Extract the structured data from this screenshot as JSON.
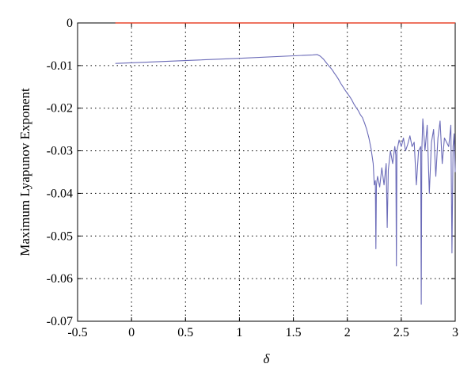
{
  "chart_data": {
    "type": "line",
    "title": "",
    "xlabel": "δ",
    "ylabel": "Maximum Lyapunov Exponent",
    "xlim": [
      -0.5,
      3
    ],
    "ylim": [
      -0.07,
      0
    ],
    "grid": true,
    "x_ticks": [
      -0.5,
      0,
      0.5,
      1,
      1.5,
      2,
      2.5,
      3
    ],
    "x_tick_labels": [
      "-0.5",
      "0",
      "0.5",
      "1",
      "1.5",
      "2",
      "2.5",
      "3"
    ],
    "y_ticks": [
      0,
      -0.01,
      -0.02,
      -0.03,
      -0.04,
      -0.05,
      -0.06,
      -0.07
    ],
    "y_tick_labels": [
      "0",
      "-0.01",
      "-0.02",
      "-0.03",
      "-0.04",
      "-0.05",
      "-0.06",
      "-0.07"
    ],
    "series": [
      {
        "color": "#e8452c",
        "x": [
          -0.15,
          3.0
        ],
        "y": [
          0,
          0
        ]
      },
      {
        "color": "#6b6bb8",
        "x": [
          -0.15,
          1.0,
          1.68,
          1.72,
          1.75,
          1.78,
          1.8,
          1.82,
          1.84,
          1.86,
          1.88,
          1.9,
          1.92,
          1.94,
          1.96,
          1.98,
          2.0,
          2.02,
          2.04,
          2.06,
          2.08,
          2.1,
          2.12,
          2.14,
          2.16,
          2.18,
          2.2,
          2.22,
          2.24,
          2.25,
          2.26,
          2.265,
          2.27,
          2.28,
          2.3,
          2.32,
          2.34,
          2.36,
          2.37,
          2.38,
          2.4,
          2.42,
          2.44,
          2.45,
          2.455,
          2.46,
          2.48,
          2.5,
          2.52,
          2.54,
          2.56,
          2.58,
          2.6,
          2.62,
          2.64,
          2.66,
          2.68,
          2.685,
          2.69,
          2.7,
          2.72,
          2.74,
          2.76,
          2.78,
          2.8,
          2.82,
          2.84,
          2.86,
          2.88,
          2.9,
          2.92,
          2.94,
          2.96,
          2.97,
          2.98,
          2.99,
          3.0
        ],
        "y": [
          -0.0095,
          -0.0083,
          -0.0075,
          -0.0074,
          -0.0078,
          -0.0085,
          -0.0092,
          -0.0098,
          -0.0104,
          -0.011,
          -0.0118,
          -0.0125,
          -0.0133,
          -0.0142,
          -0.015,
          -0.0158,
          -0.0165,
          -0.0172,
          -0.018,
          -0.019,
          -0.0198,
          -0.0205,
          -0.0215,
          -0.0222,
          -0.0235,
          -0.025,
          -0.027,
          -0.0295,
          -0.033,
          -0.038,
          -0.037,
          -0.053,
          -0.038,
          -0.036,
          -0.0385,
          -0.034,
          -0.038,
          -0.033,
          -0.048,
          -0.0345,
          -0.03,
          -0.033,
          -0.029,
          -0.031,
          -0.057,
          -0.03,
          -0.0275,
          -0.029,
          -0.027,
          -0.03,
          -0.0285,
          -0.0265,
          -0.029,
          -0.028,
          -0.038,
          -0.03,
          -0.029,
          -0.066,
          -0.03,
          -0.0225,
          -0.03,
          -0.024,
          -0.04,
          -0.028,
          -0.025,
          -0.036,
          -0.027,
          -0.023,
          -0.033,
          -0.027,
          -0.028,
          -0.029,
          -0.024,
          -0.054,
          -0.029,
          -0.026,
          -0.035
        ]
      }
    ]
  }
}
